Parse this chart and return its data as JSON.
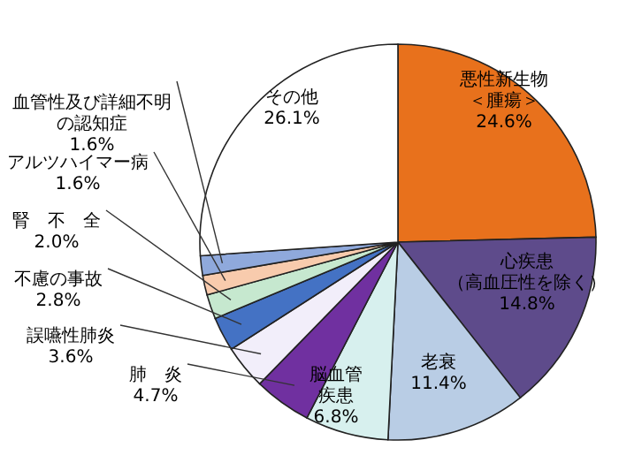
{
  "chart_data": {
    "type": "pie",
    "categories": [
      "悪性新生物＜腫瘍＞",
      "心疾患（高血圧性を除く）",
      "老衰",
      "脳血管疾患",
      "肺　炎",
      "誤嚥性肺炎",
      "不慮の事故",
      "腎　不　全",
      "アルツハイマー病",
      "血管性及び詳細不明の認知症",
      "その他"
    ],
    "values": [
      24.6,
      14.8,
      11.4,
      6.8,
      4.7,
      3.6,
      2.8,
      2.0,
      1.6,
      1.6,
      26.1
    ],
    "value_labels": [
      "24.6%",
      "14.8%",
      "11.4%",
      "6.8%",
      "4.7%",
      "3.6%",
      "2.8%",
      "2.0%",
      "1.6%",
      "1.6%",
      "26.1%"
    ],
    "colors": [
      "#e8711c",
      "#5e4b8b",
      "#b9cde5",
      "#d7f0ee",
      "#7030a0",
      "#f2eefa",
      "#4472c4",
      "#c6e8cf",
      "#f8cbad",
      "#8fa9dc",
      "#ffffff"
    ]
  }
}
